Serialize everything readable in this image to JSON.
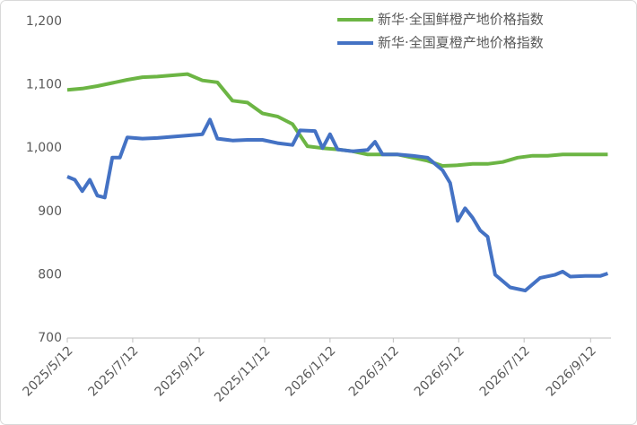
{
  "chart_data": {
    "type": "line",
    "xlim": [
      "2025/5/12",
      "2026/10/1"
    ],
    "xticks": [
      "2025/5/12",
      "2025/7/12",
      "2025/9/12",
      "2025/11/12",
      "2026/1/12",
      "2026/3/12",
      "2026/5/12",
      "2026/7/12",
      "2026/9/12"
    ],
    "ylim": [
      700,
      1200
    ],
    "yticks": [
      700,
      800,
      900,
      {
        "value": 1000,
        "label": "1,000"
      },
      {
        "value": 1100,
        "label": "1,100"
      },
      {
        "value": 1200,
        "label": "1,200"
      }
    ],
    "legend": "top-right",
    "series": [
      {
        "name": "新华·全国鲜橙产地价格指数",
        "color": "#6cb544",
        "x": [
          "2025/5/12",
          "2025/5/26",
          "2025/6/9",
          "2025/6/23",
          "2025/7/7",
          "2025/7/21",
          "2025/8/4",
          "2025/8/18",
          "2025/9/1",
          "2025/9/15",
          "2025/9/29",
          "2025/10/13",
          "2025/10/27",
          "2025/11/10",
          "2025/11/24",
          "2025/12/8",
          "2025/12/22",
          "2026/1/5",
          "2026/1/19",
          "2026/2/2",
          "2026/2/16",
          "2026/3/2",
          "2026/3/16",
          "2026/3/30",
          "2026/4/13",
          "2026/4/27",
          "2026/5/11",
          "2026/5/25",
          "2026/6/8",
          "2026/6/22",
          "2026/7/6",
          "2026/7/20",
          "2026/8/3",
          "2026/8/17",
          "2026/8/31",
          "2026/9/14",
          "2026/9/28"
        ],
        "values": [
          1092,
          1094,
          1098,
          1103,
          1108,
          1112,
          1113,
          1115,
          1117,
          1107,
          1104,
          1075,
          1072,
          1055,
          1050,
          1038,
          1003,
          1000,
          998,
          995,
          990,
          990,
          990,
          985,
          980,
          972,
          973,
          975,
          975,
          978,
          985,
          988,
          988,
          990,
          990,
          990,
          990
        ]
      },
      {
        "name": "新华·全国夏橙产地价格指数",
        "color": "#4472c4",
        "x": [
          "2025/5/12",
          "2025/5/19",
          "2025/5/26",
          "2025/6/2",
          "2025/6/9",
          "2025/6/16",
          "2025/6/23",
          "2025/6/30",
          "2025/7/7",
          "2025/7/21",
          "2025/8/4",
          "2025/8/18",
          "2025/9/1",
          "2025/9/15",
          "2025/9/22",
          "2025/9/29",
          "2025/10/13",
          "2025/10/27",
          "2025/11/10",
          "2025/11/24",
          "2025/12/8",
          "2025/12/15",
          "2025/12/29",
          "2026/1/5",
          "2026/1/12",
          "2026/1/19",
          "2026/2/2",
          "2026/2/16",
          "2026/2/23",
          "2026/3/2",
          "2026/3/16",
          "2026/3/30",
          "2026/4/13",
          "2026/4/27",
          "2026/5/4",
          "2026/5/11",
          "2026/5/18",
          "2026/5/25",
          "2026/6/1",
          "2026/6/8",
          "2026/6/15",
          "2026/6/29",
          "2026/7/13",
          "2026/7/27",
          "2026/8/10",
          "2026/8/17",
          "2026/8/24",
          "2026/9/7",
          "2026/9/21",
          "2026/9/28"
        ],
        "values": [
          955,
          950,
          932,
          950,
          925,
          922,
          985,
          985,
          1017,
          1015,
          1016,
          1018,
          1020,
          1022,
          1045,
          1015,
          1012,
          1013,
          1013,
          1008,
          1005,
          1028,
          1027,
          1000,
          1022,
          998,
          995,
          997,
          1010,
          990,
          990,
          988,
          985,
          965,
          945,
          885,
          905,
          890,
          870,
          860,
          800,
          780,
          775,
          795,
          800,
          805,
          797,
          798,
          798,
          802
        ]
      }
    ]
  }
}
